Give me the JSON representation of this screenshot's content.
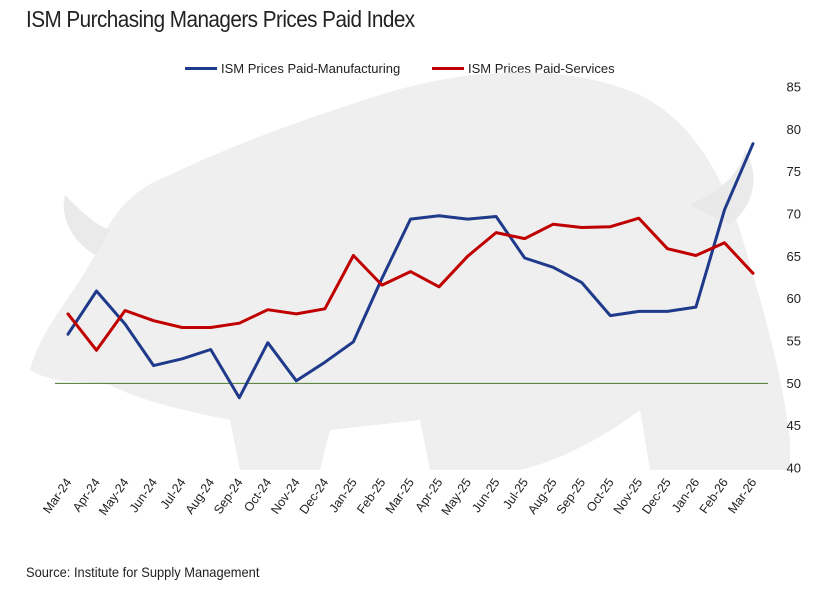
{
  "title": "ISM Purchasing Managers Prices Paid Index",
  "source": "Source: Institute for Supply Management",
  "chart_data": {
    "type": "line",
    "title": "ISM Purchasing Managers Prices Paid Index",
    "xlabel": "",
    "ylabel": "",
    "ylim": [
      40,
      85
    ],
    "yticks": [
      40,
      45,
      50,
      55,
      60,
      65,
      70,
      75,
      80,
      85
    ],
    "y_axis_side": "right",
    "grid": false,
    "legend_position": "top-center",
    "reference_line": {
      "value": 50,
      "color": "#4a7a2a"
    },
    "categories": [
      "Mar-24",
      "Apr-24",
      "May-24",
      "Jun-24",
      "Jul-24",
      "Aug-24",
      "Sep-24",
      "Oct-24",
      "Nov-24",
      "Dec-24",
      "Jan-25",
      "Feb-25",
      "Mar-25",
      "Apr-25",
      "May-25",
      "Jun-25",
      "Jul-25",
      "Aug-25",
      "Sep-25",
      "Oct-25",
      "Nov-25",
      "Dec-25",
      "Jan-26",
      "Feb-26",
      "Mar-26"
    ],
    "series": [
      {
        "name": "ISM Prices Paid-Manufacturing",
        "color": "#1f3a8a",
        "values": [
          55.8,
          60.9,
          57.0,
          52.1,
          52.9,
          54.0,
          48.3,
          54.8,
          50.3,
          52.5,
          54.9,
          62.4,
          69.4,
          69.8,
          69.4,
          69.7,
          64.8,
          63.7,
          61.9,
          58.0,
          58.5,
          58.5,
          59.0,
          70.5,
          78.3
        ]
      },
      {
        "name": "ISM Prices Paid-Services",
        "color": "#c00000",
        "values": [
          58.2,
          53.9,
          58.6,
          57.4,
          56.6,
          56.6,
          57.1,
          58.7,
          58.2,
          58.8,
          65.1,
          61.6,
          63.2,
          61.4,
          65.0,
          67.8,
          67.1,
          68.8,
          68.4,
          68.5,
          69.5,
          65.9,
          65.1,
          66.6,
          63.0
        ]
      }
    ]
  }
}
